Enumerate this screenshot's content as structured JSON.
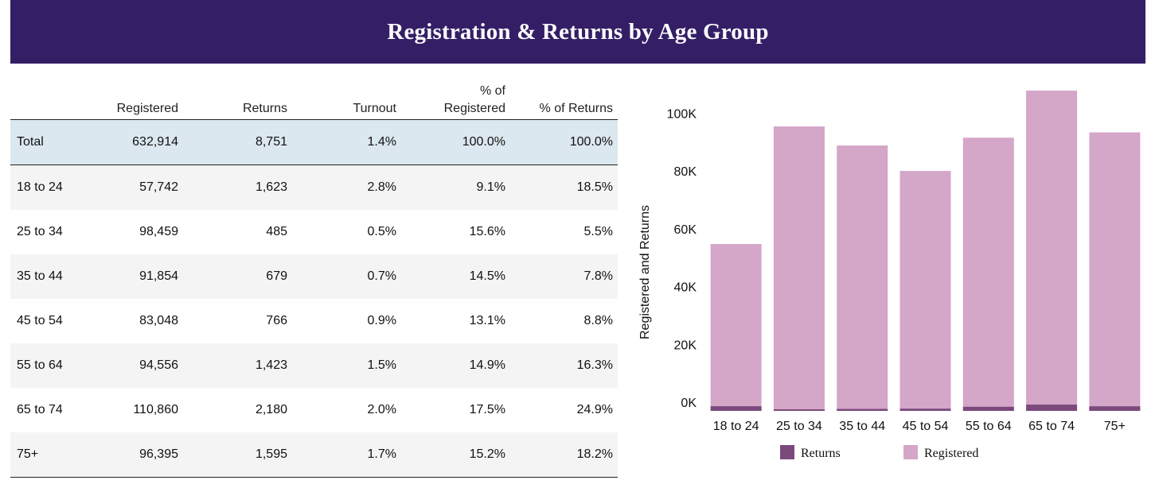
{
  "title": "Registration & Returns by Age Group",
  "table": {
    "headers": [
      "",
      "Registered",
      "Returns",
      "Turnout",
      "% of Registered",
      "% of Returns"
    ],
    "header_lines": [
      [
        ""
      ],
      [
        "Registered"
      ],
      [
        "Returns"
      ],
      [
        "Turnout"
      ],
      [
        "% of",
        "Registered"
      ],
      [
        "% of Returns"
      ]
    ],
    "total": [
      "Total",
      "632,914",
      "8,751",
      "1.4%",
      "100.0%",
      "100.0%"
    ],
    "rows": [
      [
        "18 to 24",
        "57,742",
        "1,623",
        "2.8%",
        "9.1%",
        "18.5%"
      ],
      [
        "25 to 34",
        "98,459",
        "485",
        "0.5%",
        "15.6%",
        "5.5%"
      ],
      [
        "35 to 44",
        "91,854",
        "679",
        "0.7%",
        "14.5%",
        "7.8%"
      ],
      [
        "45 to 54",
        "83,048",
        "766",
        "0.9%",
        "13.1%",
        "8.8%"
      ],
      [
        "55 to 64",
        "94,556",
        "1,423",
        "1.5%",
        "14.9%",
        "16.3%"
      ],
      [
        "65 to 74",
        "110,860",
        "2,180",
        "2.0%",
        "17.5%",
        "24.9%"
      ],
      [
        "75+",
        "96,395",
        "1,595",
        "1.7%",
        "15.2%",
        "18.2%"
      ]
    ]
  },
  "chart_data": {
    "type": "bar",
    "stacked": false,
    "overlaid": true,
    "categories": [
      "18 to 24",
      "25 to 34",
      "35 to 44",
      "45 to 54",
      "55 to 64",
      "65 to 74",
      "75+"
    ],
    "series": [
      {
        "name": "Returns",
        "values": [
          1623,
          485,
          679,
          766,
          1423,
          2180,
          1595
        ],
        "color": "#7b4a7c"
      },
      {
        "name": "Registered",
        "values": [
          57742,
          98459,
          91854,
          83048,
          94556,
          110860,
          96395
        ],
        "color": "#d4a6c8"
      }
    ],
    "ylabel": "Registered and Returns",
    "xlabel": "",
    "yticks": [
      0,
      20000,
      40000,
      60000,
      80000,
      100000
    ],
    "ytick_labels": [
      "0K",
      "20K",
      "40K",
      "60K",
      "80K",
      "100K"
    ],
    "ylim": [
      0,
      112000
    ],
    "legend_position": "bottom",
    "grid": false
  }
}
